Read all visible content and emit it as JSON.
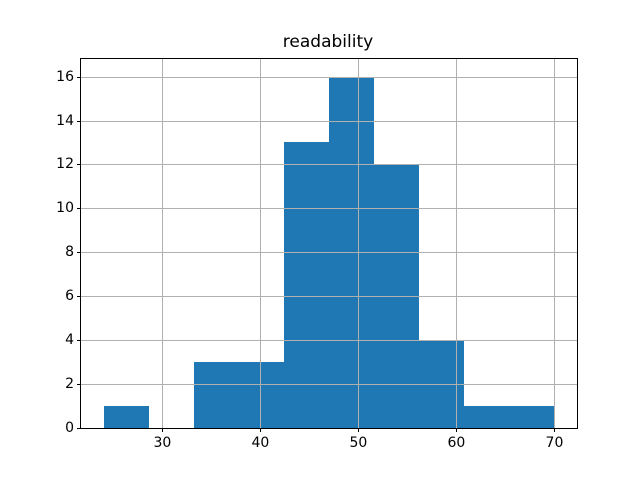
{
  "chart_data": {
    "type": "bar",
    "subtype": "histogram",
    "title": "readability",
    "bin_edges": [
      24.0,
      28.6,
      33.2,
      37.8,
      42.4,
      47.0,
      51.6,
      56.2,
      60.8,
      65.4,
      70.0
    ],
    "counts": [
      1,
      0,
      3,
      3,
      13,
      16,
      12,
      4,
      1,
      1
    ],
    "xticks": [
      30,
      40,
      50,
      60,
      70
    ],
    "yticks": [
      0,
      2,
      4,
      6,
      8,
      10,
      12,
      14,
      16
    ],
    "xlim": [
      21.7,
      72.3
    ],
    "ylim": [
      0,
      16.8
    ],
    "grid": true,
    "grid_over_bars": true,
    "legend": "none",
    "xlabel": "",
    "ylabel": "",
    "colors": {
      "bar": "#1f77b4",
      "grid": "#b0b0b0",
      "spine": "#000000",
      "background": "#ffffff",
      "text": "#000000"
    }
  }
}
